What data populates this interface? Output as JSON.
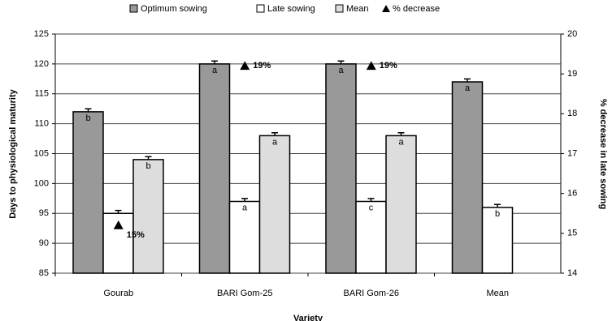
{
  "chart_data": {
    "type": "bar",
    "x_label": "Variety",
    "y_label": "Days to physiological maturity",
    "y2_label": "% decrease in late sowing",
    "categories": [
      "Gourab",
      "BARI Gom-25",
      "BARI Gom-26",
      "Mean"
    ],
    "series": [
      {
        "name": "Optimum sowing",
        "color": "#999999",
        "values": [
          112,
          120,
          120,
          117
        ],
        "errors": [
          0.5,
          0.5,
          0.5,
          0.5
        ],
        "letters": [
          "b",
          "a",
          "a",
          "a"
        ]
      },
      {
        "name": "Late sowing",
        "color": "#ffffff",
        "values": [
          95,
          97,
          97,
          96
        ],
        "errors": [
          0.5,
          0.5,
          0.5,
          0.5
        ],
        "letters": [
          null,
          "a",
          "c",
          "b"
        ]
      },
      {
        "name": "Mean",
        "color": "#dddddd",
        "values": [
          104,
          108,
          108,
          null
        ],
        "errors": [
          0.5,
          0.5,
          0.5,
          null
        ],
        "letters": [
          "b",
          "a",
          "a",
          null
        ]
      },
      {
        "name": "% decrease",
        "color": "#000000",
        "axis": "y2",
        "type": "scatter",
        "marker": "triangle",
        "values": [
          15.2,
          19.2,
          19.2,
          null
        ],
        "value_labels": [
          "15%",
          "19%",
          "19%",
          null
        ]
      }
    ],
    "ylim": [
      85,
      125
    ],
    "yticks": [
      85,
      90,
      95,
      100,
      105,
      110,
      115,
      120,
      125
    ],
    "y2lim": [
      14,
      20
    ],
    "y2ticks": [
      14,
      15,
      16,
      17,
      18,
      19,
      20
    ],
    "grid": true,
    "legend": "top"
  }
}
